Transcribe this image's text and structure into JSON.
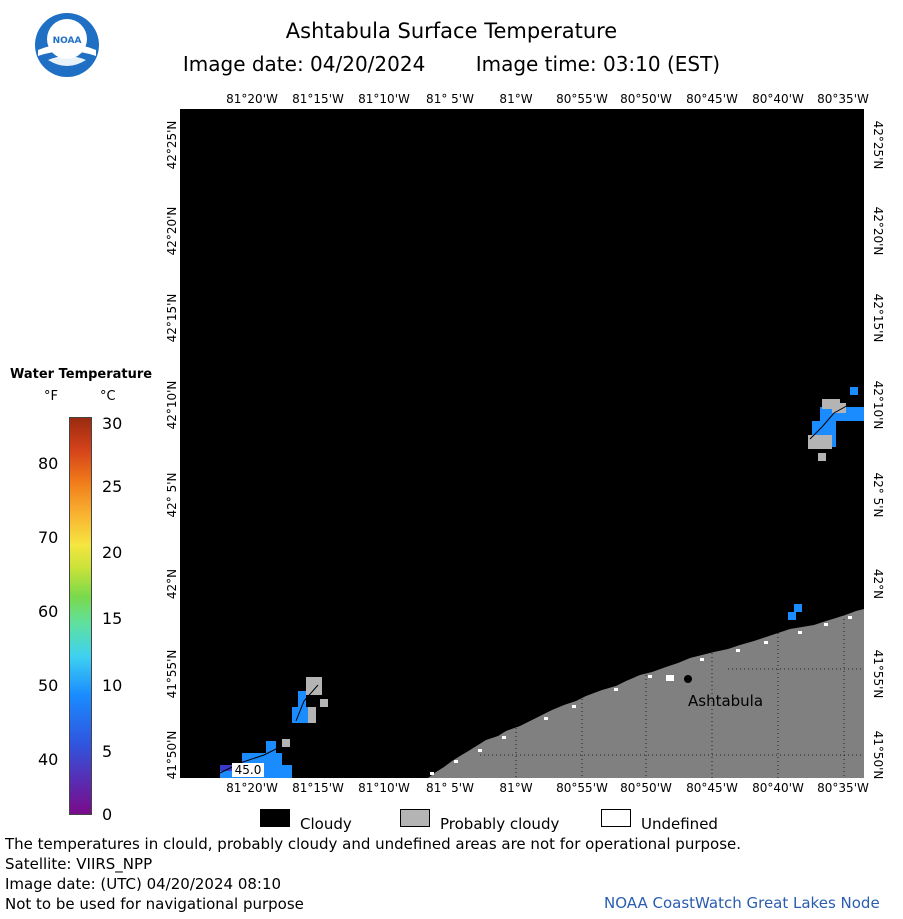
{
  "header": {
    "title": "Ashtabula Surface Temperature",
    "image_date_label": "Image date: 04/20/2024",
    "image_time_label": "Image time: 03:10 (EST)"
  },
  "logo": {
    "text": "NOAA",
    "icon": "noaa-logo-icon"
  },
  "map": {
    "lon_ticks": [
      "81°20'W",
      "81°15'W",
      "81°10'W",
      "81° 5'W",
      "81°W",
      "80°55'W",
      "80°50'W",
      "80°45'W",
      "80°40'W",
      "80°35'W"
    ],
    "lat_ticks": [
      "42°25'N",
      "42°20'N",
      "42°15'N",
      "42°10'N",
      "42° 5'N",
      "42°N",
      "41°55'N",
      "41°50'N"
    ],
    "place_label": "Ashtabula",
    "isotherm_label": "45.0",
    "colors": {
      "cloudy": "#000000",
      "land": "#808080",
      "probably_cloudy": "#b4b4b4",
      "water_5c": "#1a8cff"
    }
  },
  "legend": {
    "title": "Water Temperature",
    "unit_f": "°F",
    "unit_c": "°C",
    "f_ticks": [
      "80",
      "70",
      "60",
      "50",
      "40"
    ],
    "c_ticks": [
      "30",
      "25",
      "20",
      "15",
      "10",
      "5",
      "0"
    ]
  },
  "key": {
    "cloudy": "Cloudy",
    "probably_cloudy": "Probably cloudy",
    "undefined": "Undefined"
  },
  "footer": {
    "disclaimer": "The temperatures in clould, probably cloudy and undefined areas are not for operational purpose.",
    "satellite": "Satellite: VIIRS_NPP",
    "utc_date": "Image date: (UTC) 04/20/2024  08:10",
    "nav_warning": "Not to be used for navigational purpose",
    "credit": "NOAA CoastWatch Great Lakes Node"
  }
}
